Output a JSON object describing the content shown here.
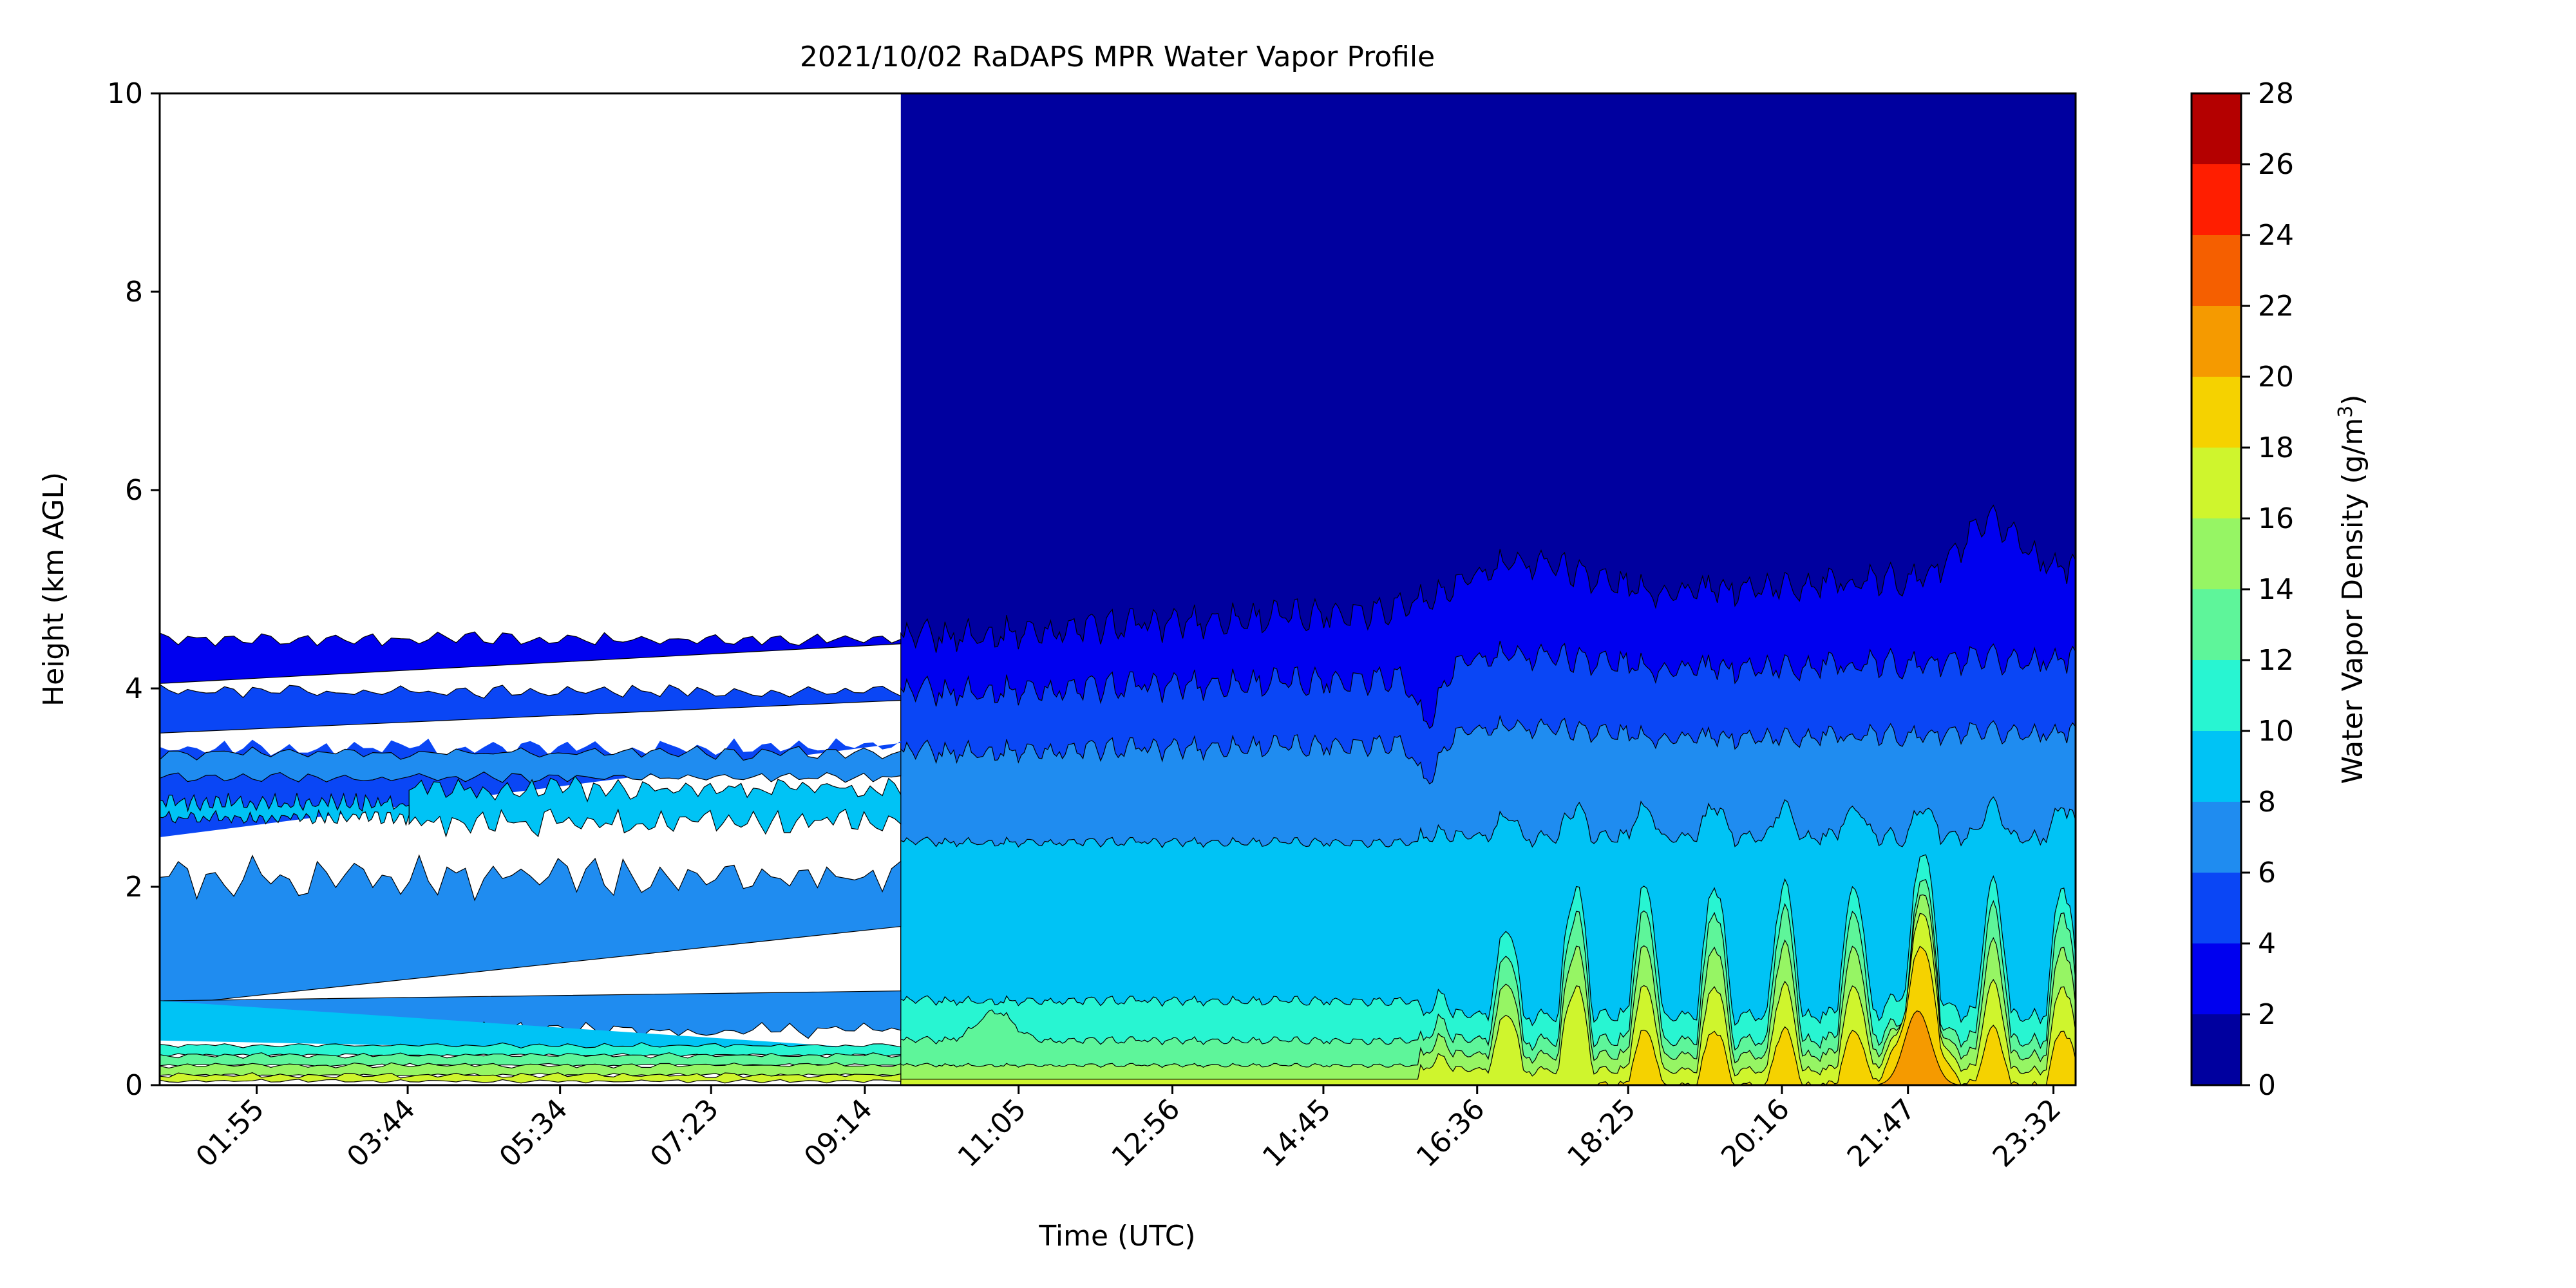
{
  "chart_data": {
    "type": "heatmap",
    "subtype": "filled-contour",
    "title": "2021/10/02 RaDAPS MPR Water Vapor Profile",
    "xlabel": "Time (UTC)",
    "ylabel": "Height (km AGL)",
    "x_tick_labels": [
      "01:55",
      "03:44",
      "05:34",
      "07:23",
      "09:14",
      "11:05",
      "12:56",
      "14:45",
      "16:36",
      "18:25",
      "20:16",
      "21:47",
      "23:32"
    ],
    "y_ticks": [
      0,
      2,
      4,
      6,
      8,
      10
    ],
    "ylim": [
      0,
      10
    ],
    "x_range_hours": [
      0.75,
      23.8
    ],
    "colorbar": {
      "label": "Water Vapor Density (g/m",
      "label_superscript": "3",
      "label_suffix": ")",
      "ticks": [
        0,
        2,
        4,
        6,
        8,
        10,
        12,
        14,
        16,
        18,
        20,
        22,
        24,
        26,
        28
      ],
      "levels": [
        0,
        2,
        4,
        6,
        8,
        10,
        12,
        14,
        16,
        18,
        20,
        22,
        24,
        26,
        28
      ],
      "colors": [
        "#00009f",
        "#0000ef",
        "#0a46f5",
        "#1f8cf0",
        "#00c3f5",
        "#28f5d2",
        "#5ef59a",
        "#96f564",
        "#cff52d",
        "#f5d200",
        "#f59a00",
        "#f55f00",
        "#ff1e00",
        "#b40000"
      ]
    },
    "observations": {
      "data_gap_before": "09:40",
      "upper_level_value": "0-2",
      "boundary_layer_peak_time": "21:47",
      "boundary_layer_peak_value": "20-22"
    },
    "grid": false
  }
}
